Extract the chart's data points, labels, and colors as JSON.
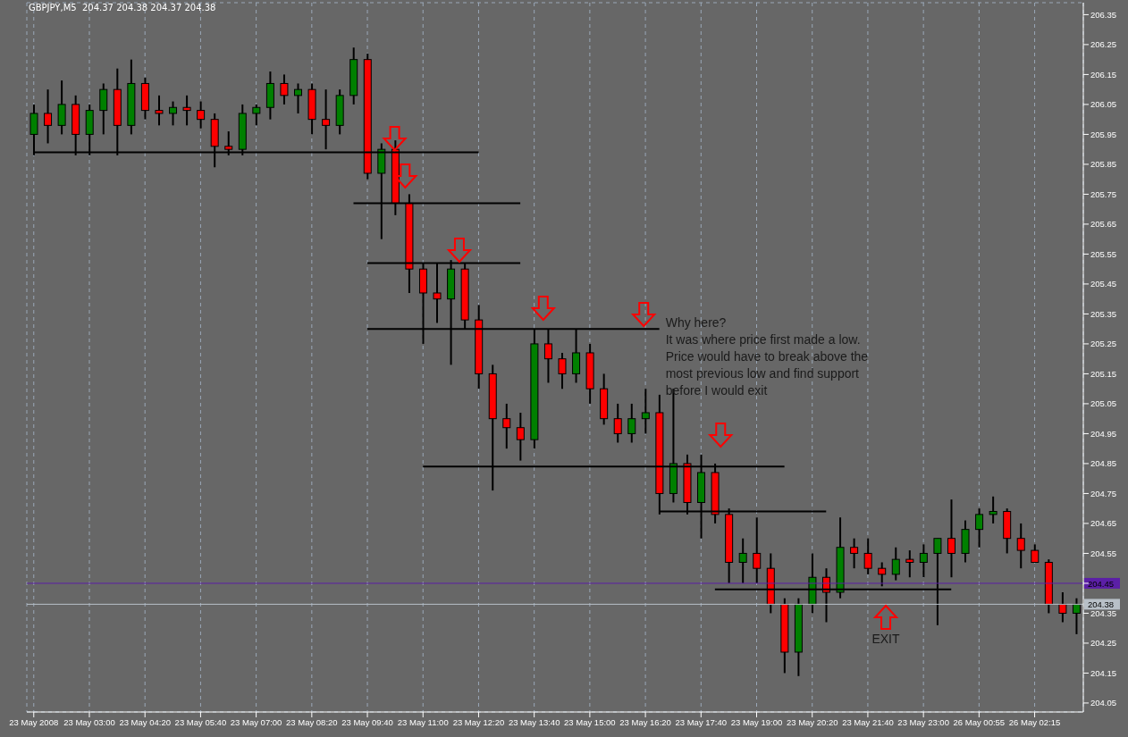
{
  "chart_data": {
    "type": "candlestick",
    "title": "GBPJPY,M5  204.37 204.38 204.37 204.38",
    "categories": [
      "23 May 2008",
      null,
      null,
      null,
      "23 May 03:00",
      null,
      null,
      null,
      "23 May 04:20",
      null,
      null,
      null,
      "23 May 05:40",
      null,
      null,
      null,
      "23 May 07:00",
      null,
      null,
      null,
      "23 May 08:20",
      null,
      null,
      null,
      "23 May 09:40",
      null,
      null,
      null,
      "23 May 11:00",
      null,
      null,
      null,
      "23 May 12:20",
      null,
      null,
      null,
      "23 May 13:40",
      null,
      null,
      null,
      "23 May 15:00",
      null,
      null,
      null,
      "23 May 16:20",
      null,
      null,
      null,
      "23 May 17:40",
      null,
      null,
      null,
      "23 May 19:00",
      null,
      null,
      null,
      "23 May 20:20",
      null,
      null,
      null,
      "23 May 21:40",
      null,
      null,
      null,
      "23 May 23:00",
      null,
      null,
      null,
      "26 May 00:55",
      null,
      null,
      null,
      "26 May 02:15",
      null,
      null,
      null
    ],
    "ohlc": [
      [
        205.95,
        206.05,
        205.88,
        206.02
      ],
      [
        206.02,
        206.1,
        205.92,
        205.98
      ],
      [
        205.98,
        206.13,
        205.95,
        206.05
      ],
      [
        206.05,
        206.08,
        205.88,
        205.95
      ],
      [
        205.95,
        206.05,
        205.88,
        206.03
      ],
      [
        206.03,
        206.12,
        205.95,
        206.1
      ],
      [
        206.1,
        206.17,
        205.88,
        205.98
      ],
      [
        205.98,
        206.2,
        205.95,
        206.12
      ],
      [
        206.12,
        206.14,
        206.0,
        206.03
      ],
      [
        206.03,
        206.08,
        205.98,
        206.02
      ],
      [
        206.02,
        206.06,
        205.98,
        206.04
      ],
      [
        206.04,
        206.08,
        205.98,
        206.03
      ],
      [
        206.03,
        206.06,
        205.97,
        206.0
      ],
      [
        206.0,
        206.02,
        205.84,
        205.91
      ],
      [
        205.91,
        205.96,
        205.88,
        205.9
      ],
      [
        205.9,
        206.05,
        205.88,
        206.02
      ],
      [
        206.02,
        206.05,
        205.98,
        206.04
      ],
      [
        206.04,
        206.16,
        206.0,
        206.12
      ],
      [
        206.12,
        206.15,
        206.05,
        206.08
      ],
      [
        206.08,
        206.12,
        206.02,
        206.1
      ],
      [
        206.1,
        206.12,
        205.95,
        206.0
      ],
      [
        206.0,
        206.1,
        205.9,
        205.98
      ],
      [
        205.98,
        206.1,
        205.95,
        206.08
      ],
      [
        206.08,
        206.24,
        206.05,
        206.2
      ],
      [
        206.2,
        206.22,
        205.8,
        205.82
      ],
      [
        205.82,
        205.92,
        205.6,
        205.9
      ],
      [
        205.9,
        205.93,
        205.68,
        205.72
      ],
      [
        205.72,
        205.75,
        205.42,
        205.5
      ],
      [
        205.5,
        205.52,
        205.25,
        205.42
      ],
      [
        205.42,
        205.52,
        205.32,
        205.4
      ],
      [
        205.4,
        205.53,
        205.18,
        205.5
      ],
      [
        205.5,
        205.52,
        205.3,
        205.33
      ],
      [
        205.33,
        205.38,
        205.1,
        205.15
      ],
      [
        205.15,
        205.18,
        204.76,
        205.0
      ],
      [
        205.0,
        205.05,
        204.9,
        204.97
      ],
      [
        204.97,
        205.02,
        204.86,
        204.93
      ],
      [
        204.93,
        205.3,
        204.9,
        205.25
      ],
      [
        205.25,
        205.3,
        205.12,
        205.2
      ],
      [
        205.2,
        205.22,
        205.1,
        205.15
      ],
      [
        205.15,
        205.3,
        205.12,
        205.22
      ],
      [
        205.22,
        205.25,
        205.05,
        205.1
      ],
      [
        205.1,
        205.15,
        204.98,
        205.0
      ],
      [
        205.0,
        205.05,
        204.92,
        204.95
      ],
      [
        204.95,
        205.05,
        204.92,
        205.0
      ],
      [
        205.0,
        205.1,
        204.95,
        205.02
      ],
      [
        205.02,
        205.08,
        204.68,
        204.75
      ],
      [
        204.75,
        205.1,
        204.72,
        204.85
      ],
      [
        204.85,
        204.88,
        204.68,
        204.72
      ],
      [
        204.72,
        204.88,
        204.6,
        204.82
      ],
      [
        204.82,
        204.85,
        204.65,
        204.68
      ],
      [
        204.68,
        204.7,
        204.45,
        204.52
      ],
      [
        204.52,
        204.6,
        204.45,
        204.55
      ],
      [
        204.55,
        204.67,
        204.45,
        204.5
      ],
      [
        204.5,
        204.55,
        204.35,
        204.38
      ],
      [
        204.38,
        204.4,
        204.15,
        204.22
      ],
      [
        204.22,
        204.4,
        204.14,
        204.38
      ],
      [
        204.38,
        204.55,
        204.35,
        204.47
      ],
      [
        204.47,
        204.5,
        204.32,
        204.42
      ],
      [
        204.42,
        204.67,
        204.4,
        204.57
      ],
      [
        204.57,
        204.6,
        204.5,
        204.55
      ],
      [
        204.55,
        204.6,
        204.48,
        204.5
      ],
      [
        204.5,
        204.52,
        204.44,
        204.48
      ],
      [
        204.48,
        204.57,
        204.46,
        204.53
      ],
      [
        204.53,
        204.56,
        204.47,
        204.52
      ],
      [
        204.52,
        204.58,
        204.47,
        204.55
      ],
      [
        204.55,
        204.6,
        204.31,
        204.6
      ],
      [
        204.6,
        204.73,
        204.47,
        204.55
      ],
      [
        204.55,
        204.66,
        204.52,
        204.63
      ],
      [
        204.63,
        204.7,
        204.57,
        204.68
      ],
      [
        204.68,
        204.74,
        204.65,
        204.69
      ],
      [
        204.69,
        204.7,
        204.55,
        204.6
      ],
      [
        204.6,
        204.65,
        204.5,
        204.56
      ],
      [
        204.56,
        204.58,
        204.52,
        204.52
      ],
      [
        204.52,
        204.53,
        204.35,
        204.38
      ],
      [
        204.38,
        204.42,
        204.32,
        204.35
      ],
      [
        204.35,
        204.4,
        204.28,
        204.38
      ]
    ],
    "colors": [
      "#008000",
      "#ff0000",
      "#008000",
      "#ff0000",
      "#008000",
      "#008000",
      "#ff0000",
      "#008000",
      "#ff0000",
      "#ff0000",
      "#008000",
      "#ff0000",
      "#ff0000",
      "#ff0000",
      "#ff0000",
      "#008000",
      "#008000",
      "#008000",
      "#ff0000",
      "#008000",
      "#ff0000",
      "#ff0000",
      "#008000",
      "#008000",
      "#ff0000",
      "#008000",
      "#ff0000",
      "#ff0000",
      "#ff0000",
      "#ff0000",
      "#008000",
      "#ff0000",
      "#ff0000",
      "#ff0000",
      "#ff0000",
      "#ff0000",
      "#008000",
      "#ff0000",
      "#ff0000",
      "#008000",
      "#ff0000",
      "#ff0000",
      "#ff0000",
      "#008000",
      "#008000",
      "#ff0000",
      "#008000",
      "#ff0000",
      "#008000",
      "#ff0000",
      "#ff0000",
      "#008000",
      "#ff0000",
      "#ff0000",
      "#ff0000",
      "#008000",
      "#008000",
      "#ff0000",
      "#008000",
      "#ff0000",
      "#ff0000",
      "#ff0000",
      "#008000",
      "#ff0000",
      "#008000",
      "#008000",
      "#ff0000",
      "#008000",
      "#008000",
      "#008000",
      "#ff0000",
      "#ff0000",
      "#ff0000",
      "#ff0000",
      "#ff0000",
      "#008000"
    ],
    "series": [
      {
        "type": "line",
        "color": "#000000",
        "values": [
          205.89,
          205.89,
          205.89,
          205.89,
          205.89,
          205.89,
          205.89,
          205.89,
          205.89,
          205.89,
          205.89,
          205.89,
          205.89,
          205.89,
          205.89,
          205.89,
          205.89,
          205.89,
          205.89,
          205.89,
          205.89,
          205.89,
          205.89,
          205.89,
          205.89,
          205.89,
          205.89,
          205.89,
          205.89,
          205.89,
          205.89,
          205.89,
          205.89,
          null,
          null,
          null,
          null,
          null,
          null,
          null,
          null,
          null,
          null,
          null,
          null,
          null,
          null,
          null,
          null,
          null,
          null,
          null,
          null,
          null,
          null,
          null,
          null,
          null,
          null,
          null,
          null,
          null,
          null,
          null,
          null,
          null,
          null,
          null,
          null,
          null,
          null,
          null,
          null,
          null,
          null,
          null
        ]
      },
      {
        "type": "line",
        "color": "#000000",
        "values": [
          null,
          null,
          null,
          null,
          null,
          null,
          null,
          null,
          null,
          null,
          null,
          null,
          null,
          null,
          null,
          null,
          null,
          null,
          null,
          null,
          null,
          null,
          null,
          205.72,
          205.72,
          205.72,
          205.72,
          205.72,
          205.72,
          205.72,
          205.72,
          205.72,
          205.72,
          205.72,
          205.72,
          205.72,
          null,
          null,
          null,
          null,
          null,
          null,
          null,
          null,
          null,
          null,
          null,
          null,
          null,
          null,
          null,
          null,
          null,
          null,
          null,
          null,
          null,
          null,
          null,
          null,
          null,
          null,
          null,
          null,
          null,
          null,
          null,
          null,
          null,
          null,
          null,
          null,
          null,
          null,
          null,
          null
        ]
      },
      {
        "type": "line",
        "color": "#000000",
        "values": [
          null,
          null,
          null,
          null,
          null,
          null,
          null,
          null,
          null,
          null,
          null,
          null,
          null,
          null,
          null,
          null,
          null,
          null,
          null,
          null,
          null,
          null,
          null,
          null,
          205.52,
          205.52,
          205.52,
          205.52,
          205.52,
          205.52,
          205.52,
          205.52,
          205.52,
          205.52,
          205.52,
          205.52,
          null,
          null,
          null,
          null,
          null,
          null,
          null,
          null,
          null,
          null,
          null,
          null,
          null,
          null,
          null,
          null,
          null,
          null,
          null,
          null,
          null,
          null,
          null,
          null,
          null,
          null,
          null,
          null,
          null,
          null,
          null,
          null,
          null,
          null,
          null,
          null,
          null,
          null,
          null,
          null
        ]
      },
      {
        "type": "line",
        "color": "#000000",
        "values": [
          null,
          null,
          null,
          null,
          null,
          null,
          null,
          null,
          null,
          null,
          null,
          null,
          null,
          null,
          null,
          null,
          null,
          null,
          null,
          null,
          null,
          null,
          null,
          null,
          205.3,
          205.3,
          205.3,
          205.3,
          205.3,
          205.3,
          205.3,
          205.3,
          205.3,
          205.3,
          205.3,
          205.3,
          205.3,
          205.3,
          205.3,
          205.3,
          205.3,
          205.3,
          205.3,
          205.3,
          205.3,
          205.3,
          null,
          null,
          null,
          null,
          null,
          null,
          null,
          null,
          null,
          null,
          null,
          null,
          null,
          null,
          null,
          null,
          null,
          null,
          null,
          null,
          null,
          null,
          null,
          null,
          null,
          null,
          null,
          null,
          null,
          null
        ]
      },
      {
        "type": "line",
        "color": "#000000",
        "values": [
          null,
          null,
          null,
          null,
          null,
          null,
          null,
          null,
          null,
          null,
          null,
          null,
          null,
          null,
          null,
          null,
          null,
          null,
          null,
          null,
          null,
          null,
          null,
          null,
          null,
          null,
          null,
          null,
          204.84,
          204.84,
          204.84,
          204.84,
          204.84,
          204.84,
          204.84,
          204.84,
          204.84,
          204.84,
          204.84,
          204.84,
          204.84,
          204.84,
          204.84,
          204.84,
          204.84,
          204.84,
          204.84,
          204.84,
          204.84,
          204.84,
          204.84,
          204.84,
          204.84,
          204.84,
          204.84,
          null,
          null,
          null,
          null,
          null,
          null,
          null,
          null,
          null,
          null,
          null,
          null,
          null,
          null,
          null,
          null,
          null,
          null,
          null,
          null,
          null
        ]
      },
      {
        "type": "line",
        "color": "#000000",
        "values": [
          null,
          null,
          null,
          null,
          null,
          null,
          null,
          null,
          null,
          null,
          null,
          null,
          null,
          null,
          null,
          null,
          null,
          null,
          null,
          null,
          null,
          null,
          null,
          null,
          null,
          null,
          null,
          null,
          null,
          null,
          null,
          null,
          null,
          null,
          null,
          null,
          null,
          null,
          null,
          null,
          null,
          null,
          null,
          null,
          null,
          204.69,
          204.69,
          204.69,
          204.69,
          204.69,
          204.69,
          204.69,
          204.69,
          204.69,
          204.69,
          204.69,
          204.69,
          204.69,
          null,
          null,
          null,
          null,
          null,
          null,
          null,
          null,
          null,
          null,
          null,
          null,
          null,
          null,
          null,
          null,
          null,
          null
        ]
      },
      {
        "type": "line",
        "color": "#000000",
        "values": [
          null,
          null,
          null,
          null,
          null,
          null,
          null,
          null,
          null,
          null,
          null,
          null,
          null,
          null,
          null,
          null,
          null,
          null,
          null,
          null,
          null,
          null,
          null,
          null,
          null,
          null,
          null,
          null,
          null,
          null,
          null,
          null,
          null,
          null,
          null,
          null,
          null,
          null,
          null,
          null,
          null,
          null,
          null,
          null,
          null,
          null,
          null,
          null,
          null,
          204.43,
          204.43,
          204.43,
          204.43,
          204.43,
          204.43,
          204.43,
          204.43,
          204.43,
          204.43,
          204.43,
          204.43,
          204.43,
          204.43,
          204.43,
          204.43,
          204.43,
          204.43,
          null,
          null,
          null,
          null,
          null,
          null,
          null,
          null,
          null
        ]
      }
    ],
    "ylim": [
      204.02,
      206.39
    ],
    "yticks": [
      204.05,
      204.15,
      204.25,
      204.35,
      {
        "value": 204.45,
        "label": null
      },
      204.55,
      204.65,
      204.75,
      204.85,
      204.95,
      205.05,
      205.15,
      205.25,
      205.35,
      205.45,
      205.55,
      205.65,
      205.75,
      205.85,
      205.95,
      206.05,
      206.15,
      206.25,
      206.35
    ],
    "ref_lines": [
      {
        "axis": "y",
        "value": 204.45,
        "label": "204.45",
        "color": "#5b1fa6"
      },
      {
        "axis": "y",
        "value": 204.38,
        "label": "204.38",
        "color": "#b8c0c8"
      }
    ],
    "annotations": [
      "Why here?\nIt was where price first made a low.\nPrice would have to break above the\nmost previous low and find support\nbefore I would exit",
      "EXIT"
    ],
    "grid": true,
    "legend": false
  }
}
